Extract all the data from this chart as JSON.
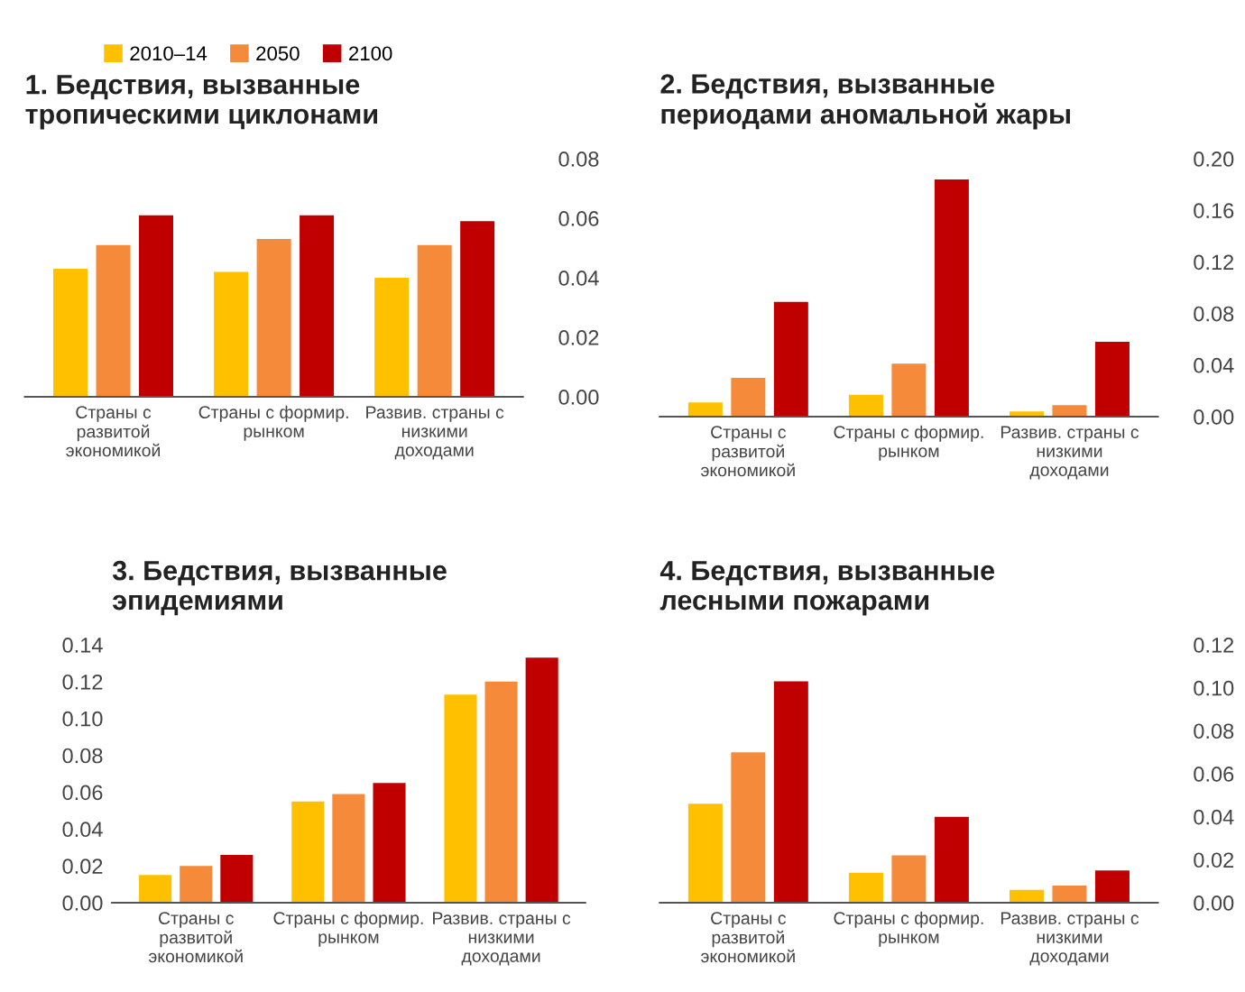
{
  "chart_data": [
    {
      "type": "bar",
      "title": "1. Бедствия, вызванные\nтропическими циклонами",
      "categories": [
        "Страны с\nразвитой\nэкономикой",
        "Страны с формир.\nрынком",
        "Развив. страны с\nнизкими\nдоходами"
      ],
      "series": [
        {
          "name": "2010–14",
          "color": "#ffc000",
          "values": [
            0.043,
            0.042,
            0.04
          ]
        },
        {
          "name": "2050",
          "color": "#f58a3a",
          "values": [
            0.051,
            0.053,
            0.051
          ]
        },
        {
          "name": "2100",
          "color": "#c00000",
          "values": [
            0.061,
            0.061,
            0.059
          ]
        }
      ],
      "ylim": [
        0,
        0.08
      ],
      "yticks": [
        {
          "value": 0,
          "label": "0.00"
        },
        {
          "value": 0.02,
          "label": "0.02"
        },
        {
          "value": 0.04,
          "label": "0.04"
        },
        {
          "value": 0.06,
          "label": "0.06"
        },
        {
          "value": 0.08,
          "label": "0.08"
        }
      ],
      "legend": "top",
      "grid": false
    },
    {
      "type": "bar",
      "title": "2. Бедствия, вызванные\nпериодами аномальной жары",
      "categories": [
        "Страны с\nразвитой\nэкономикой",
        "Страны с формир.\nрынком",
        "Развив. страны с\nнизкими\nдоходами"
      ],
      "series": [
        {
          "color": "#ffc000",
          "values": [
            0.011,
            0.017,
            0.004
          ]
        },
        {
          "color": "#f58a3a",
          "values": [
            0.03,
            0.041,
            0.009
          ]
        },
        {
          "color": "#c00000",
          "values": [
            0.089,
            0.184,
            0.058
          ]
        }
      ],
      "ylim": [
        0,
        0.2
      ],
      "yticks": [
        {
          "value": 0,
          "label": "0.00"
        },
        {
          "value": 0.04,
          "label": "0.04"
        },
        {
          "value": 0.08,
          "label": "0.08"
        },
        {
          "value": 0.12,
          "label": "0.12"
        },
        {
          "value": 0.16,
          "label": "0.16"
        },
        {
          "value": 0.2,
          "label": "0.20"
        }
      ],
      "grid": false
    },
    {
      "type": "bar",
      "title": "3. Бедствия, вызванные\nэпидемиями",
      "categories": [
        "Страны с\nразвитой\nэкономикой",
        "Страны с формир.\nрынком",
        "Развив. страны с\nнизкими\nдоходами"
      ],
      "series": [
        {
          "color": "#ffc000",
          "values": [
            0.015,
            0.055,
            0.113
          ]
        },
        {
          "color": "#f58a3a",
          "values": [
            0.02,
            0.059,
            0.12
          ]
        },
        {
          "color": "#c00000",
          "values": [
            0.026,
            0.065,
            0.133
          ]
        }
      ],
      "ylim": [
        0,
        0.14
      ],
      "yticks": [
        {
          "value": 0,
          "label": "0.00"
        },
        {
          "value": 0.02,
          "label": "0.02"
        },
        {
          "value": 0.04,
          "label": "0.04"
        },
        {
          "value": 0.06,
          "label": "0.06"
        },
        {
          "value": 0.08,
          "label": "0.08"
        },
        {
          "value": 0.1,
          "label": "0.10"
        },
        {
          "value": 0.12,
          "label": "0.12"
        },
        {
          "value": 0.14,
          "label": "0.14"
        }
      ],
      "grid": false
    },
    {
      "type": "bar",
      "title": "4. Бедствия, вызванные\nлесными пожарами",
      "categories": [
        "Страны с\nразвитой\nэкономикой",
        "Страны с формир.\nрынком",
        "Развив. страны с\nнизкими\nдоходами"
      ],
      "series": [
        {
          "color": "#ffc000",
          "values": [
            0.046,
            0.014,
            0.006
          ]
        },
        {
          "color": "#f58a3a",
          "values": [
            0.07,
            0.022,
            0.008
          ]
        },
        {
          "color": "#c00000",
          "values": [
            0.103,
            0.04,
            0.015
          ]
        }
      ],
      "ylim": [
        0,
        0.12
      ],
      "yticks": [
        {
          "value": 0,
          "label": "0.00"
        },
        {
          "value": 0.02,
          "label": "0.02"
        },
        {
          "value": 0.04,
          "label": "0.04"
        },
        {
          "value": 0.06,
          "label": "0.06"
        },
        {
          "value": 0.08,
          "label": "0.08"
        },
        {
          "value": 0.1,
          "label": "0.10"
        },
        {
          "value": 0.12,
          "label": "0.12"
        }
      ],
      "grid": false
    }
  ]
}
